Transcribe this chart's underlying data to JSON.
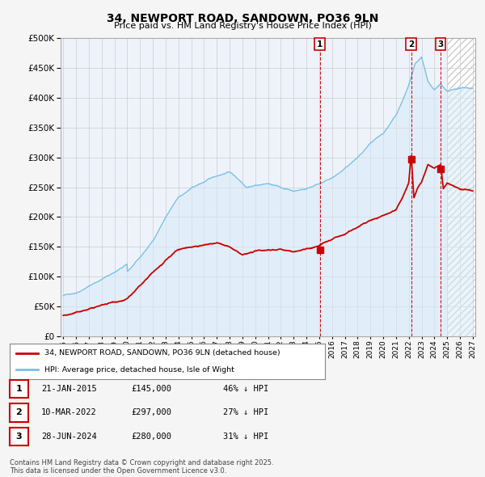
{
  "title": "34, NEWPORT ROAD, SANDOWN, PO36 9LN",
  "subtitle": "Price paid vs. HM Land Registry's House Price Index (HPI)",
  "hpi_color": "#7bbfea",
  "hpi_fill_color": "#d6eaf8",
  "price_color": "#cc0000",
  "background_color": "#eef3fb",
  "ylim": [
    0,
    500000
  ],
  "yticks": [
    0,
    50000,
    100000,
    150000,
    200000,
    250000,
    300000,
    350000,
    400000,
    450000,
    500000
  ],
  "xlim_start": 1994.8,
  "xlim_end": 2027.2,
  "hatch_start": 2025.0,
  "transactions": [
    {
      "label": "1",
      "date_dec": 2015.055,
      "price": 145000
    },
    {
      "label": "2",
      "date_dec": 2022.19,
      "price": 297000
    },
    {
      "label": "3",
      "date_dec": 2024.49,
      "price": 280000
    }
  ],
  "legend_price_label": "34, NEWPORT ROAD, SANDOWN, PO36 9LN (detached house)",
  "legend_hpi_label": "HPI: Average price, detached house, Isle of Wight",
  "footer": "Contains HM Land Registry data © Crown copyright and database right 2025.\nThis data is licensed under the Open Government Licence v3.0.",
  "table_rows": [
    {
      "num": "1",
      "date": "21-JAN-2015",
      "price": "£145,000",
      "pct": "46% ↓ HPI"
    },
    {
      "num": "2",
      "date": "10-MAR-2022",
      "price": "£297,000",
      "pct": "27% ↓ HPI"
    },
    {
      "num": "3",
      "date": "28-JUN-2024",
      "price": "£280,000",
      "pct": "31% ↓ HPI"
    }
  ]
}
